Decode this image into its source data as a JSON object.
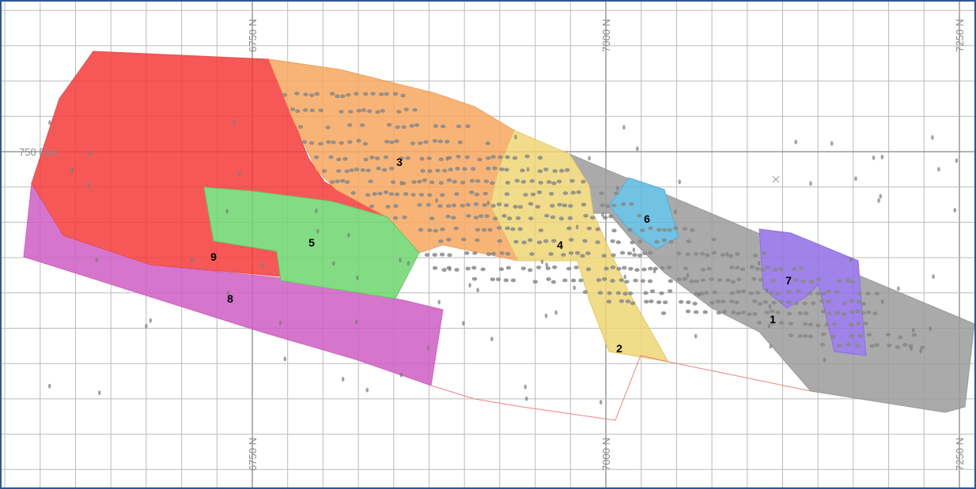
{
  "northing_labels": [
    "6750 N",
    "7000 N",
    "7250 N"
  ],
  "elevation_label": "750 Elev",
  "domain_labels": [
    "1",
    "2",
    "3",
    "4",
    "5",
    "6",
    "7",
    "8",
    "9"
  ]
}
